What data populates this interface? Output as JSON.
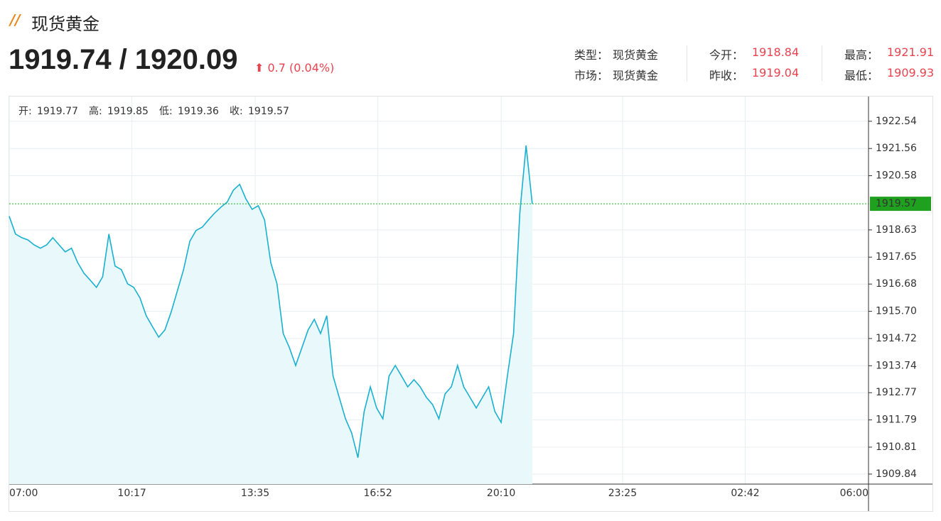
{
  "header": {
    "title": "现货黄金",
    "price": "1919.74 / 1920.09",
    "change": "0.7 (0.04%)",
    "info": [
      {
        "label": "类型：",
        "value": "现货黄金"
      },
      {
        "label": "市场：",
        "value": "现货黄金"
      },
      {
        "label": "今开：",
        "value": "1918.84"
      },
      {
        "label": "昨收：",
        "value": "1919.04"
      },
      {
        "label": "最高：",
        "value": "1921.91"
      },
      {
        "label": "最低：",
        "value": "1909.93"
      }
    ]
  },
  "chart_data": {
    "type": "area",
    "color": "#1ab0cf",
    "fill": "#e9f8fa",
    "grid": true,
    "ohlc": [
      {
        "label": "开:",
        "value": 1919.77
      },
      {
        "label": "高:",
        "value": 1919.85
      },
      {
        "label": "低:",
        "value": 1919.36
      },
      {
        "label": "收:",
        "value": 1919.57
      }
    ],
    "last_price": 1919.57,
    "xlim": [
      "07:00",
      "06:00"
    ],
    "xticks": [
      "07:00",
      "10:17",
      "13:35",
      "16:52",
      "20:10",
      "23:25",
      "02:42",
      "06:00"
    ],
    "ylim": [
      1909.48,
      1923.43
    ],
    "yticks": [
      1922.54,
      1921.56,
      1920.58,
      1918.63,
      1917.65,
      1916.68,
      {
        "value": 1915.7,
        "label": "1915.70"
      },
      1914.72,
      1913.74,
      1912.77,
      1911.79,
      1910.81,
      1909.84
    ],
    "x": [
      "07:00",
      "07:10",
      "07:20",
      "07:30",
      "07:40",
      "07:50",
      "08:00",
      "08:10",
      "08:20",
      "08:30",
      "08:40",
      "08:50",
      "09:00",
      "09:10",
      "09:20",
      "09:30",
      "09:40",
      "09:50",
      "10:00",
      "10:10",
      "10:20",
      "10:30",
      "10:40",
      "10:50",
      "11:00",
      "11:10",
      "11:20",
      "11:30",
      "11:40",
      "11:50",
      "12:00",
      "12:10",
      "12:20",
      "12:30",
      "12:40",
      "12:50",
      "13:00",
      "13:10",
      "13:20",
      "13:30",
      "13:40",
      "13:50",
      "14:00",
      "14:10",
      "14:20",
      "14:30",
      "14:40",
      "14:50",
      "15:00",
      "15:10",
      "15:20",
      "15:30",
      "15:40",
      "15:50",
      "16:00",
      "16:10",
      "16:20",
      "16:30",
      "16:40",
      "16:50",
      "17:00",
      "17:10",
      "17:20",
      "17:30",
      "17:40",
      "17:50",
      "18:00",
      "18:10",
      "18:20",
      "18:30",
      "18:40",
      "18:50",
      "19:00",
      "19:10",
      "19:20",
      "19:30",
      "19:40",
      "19:50",
      "20:00",
      "20:10",
      "20:20",
      "20:30",
      "20:40",
      "20:50",
      "21:00"
    ],
    "values": [
      1919.12,
      1918.48,
      1918.35,
      1918.27,
      1918.09,
      1917.97,
      1918.09,
      1918.35,
      1918.09,
      1917.84,
      1917.97,
      1917.45,
      1917.07,
      1916.82,
      1916.56,
      1916.94,
      1918.48,
      1917.33,
      1917.2,
      1916.69,
      1916.56,
      1916.18,
      1915.54,
      1915.15,
      1914.77,
      1915.03,
      1915.67,
      1916.43,
      1917.2,
      1918.22,
      1918.61,
      1918.73,
      1918.99,
      1919.24,
      1919.45,
      1919.63,
      1920.06,
      1920.27,
      1919.75,
      1919.37,
      1919.5,
      1918.99,
      1917.45,
      1916.69,
      1914.9,
      1914.39,
      1913.75,
      1914.39,
      1915.03,
      1915.41,
      1914.9,
      1915.54,
      1913.37,
      1912.6,
      1911.83,
      1911.32,
      1910.43,
      1912.09,
      1912.98,
      1912.22,
      1911.83,
      1913.37,
      1913.75,
      1913.37,
      1912.98,
      1913.24,
      1912.98,
      1912.6,
      1912.34,
      1911.83,
      1912.73,
      1912.98,
      1913.75,
      1912.98,
      1912.6,
      1912.22,
      1912.6,
      1912.98,
      1912.09,
      1911.7,
      1913.37,
      1914.9,
      1919.24,
      1921.67,
      1919.57
    ]
  }
}
